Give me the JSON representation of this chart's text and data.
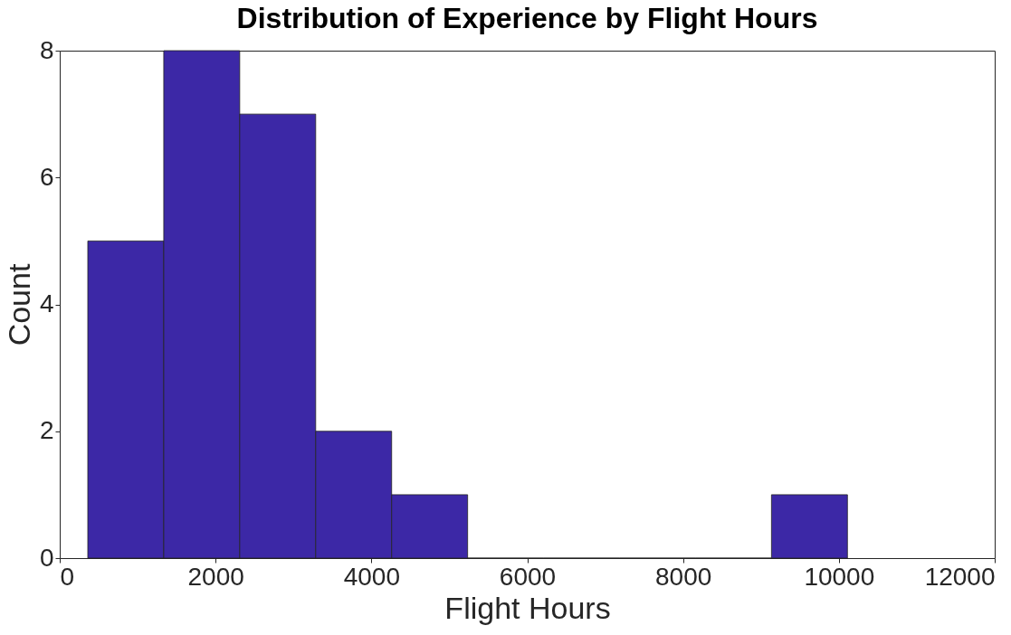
{
  "chart_data": {
    "type": "histogram",
    "title": "Distribution of Experience by Flight Hours",
    "xlabel": "Flight Hours",
    "ylabel": "Count",
    "bins": [
      360,
      1335,
      2310,
      3285,
      4260,
      5235,
      6210,
      7185,
      8160,
      9135,
      10110
    ],
    "values": [
      5,
      8,
      7,
      2,
      1,
      0,
      0,
      0,
      0,
      1
    ],
    "color": "#3c28a6",
    "xlim": [
      0,
      12000
    ],
    "xticks": [
      0,
      2000,
      4000,
      6000,
      8000,
      10000,
      12000
    ],
    "ylim": [
      0,
      8
    ],
    "yticks": [
      0,
      2,
      4,
      6,
      8
    ],
    "grid": false
  }
}
